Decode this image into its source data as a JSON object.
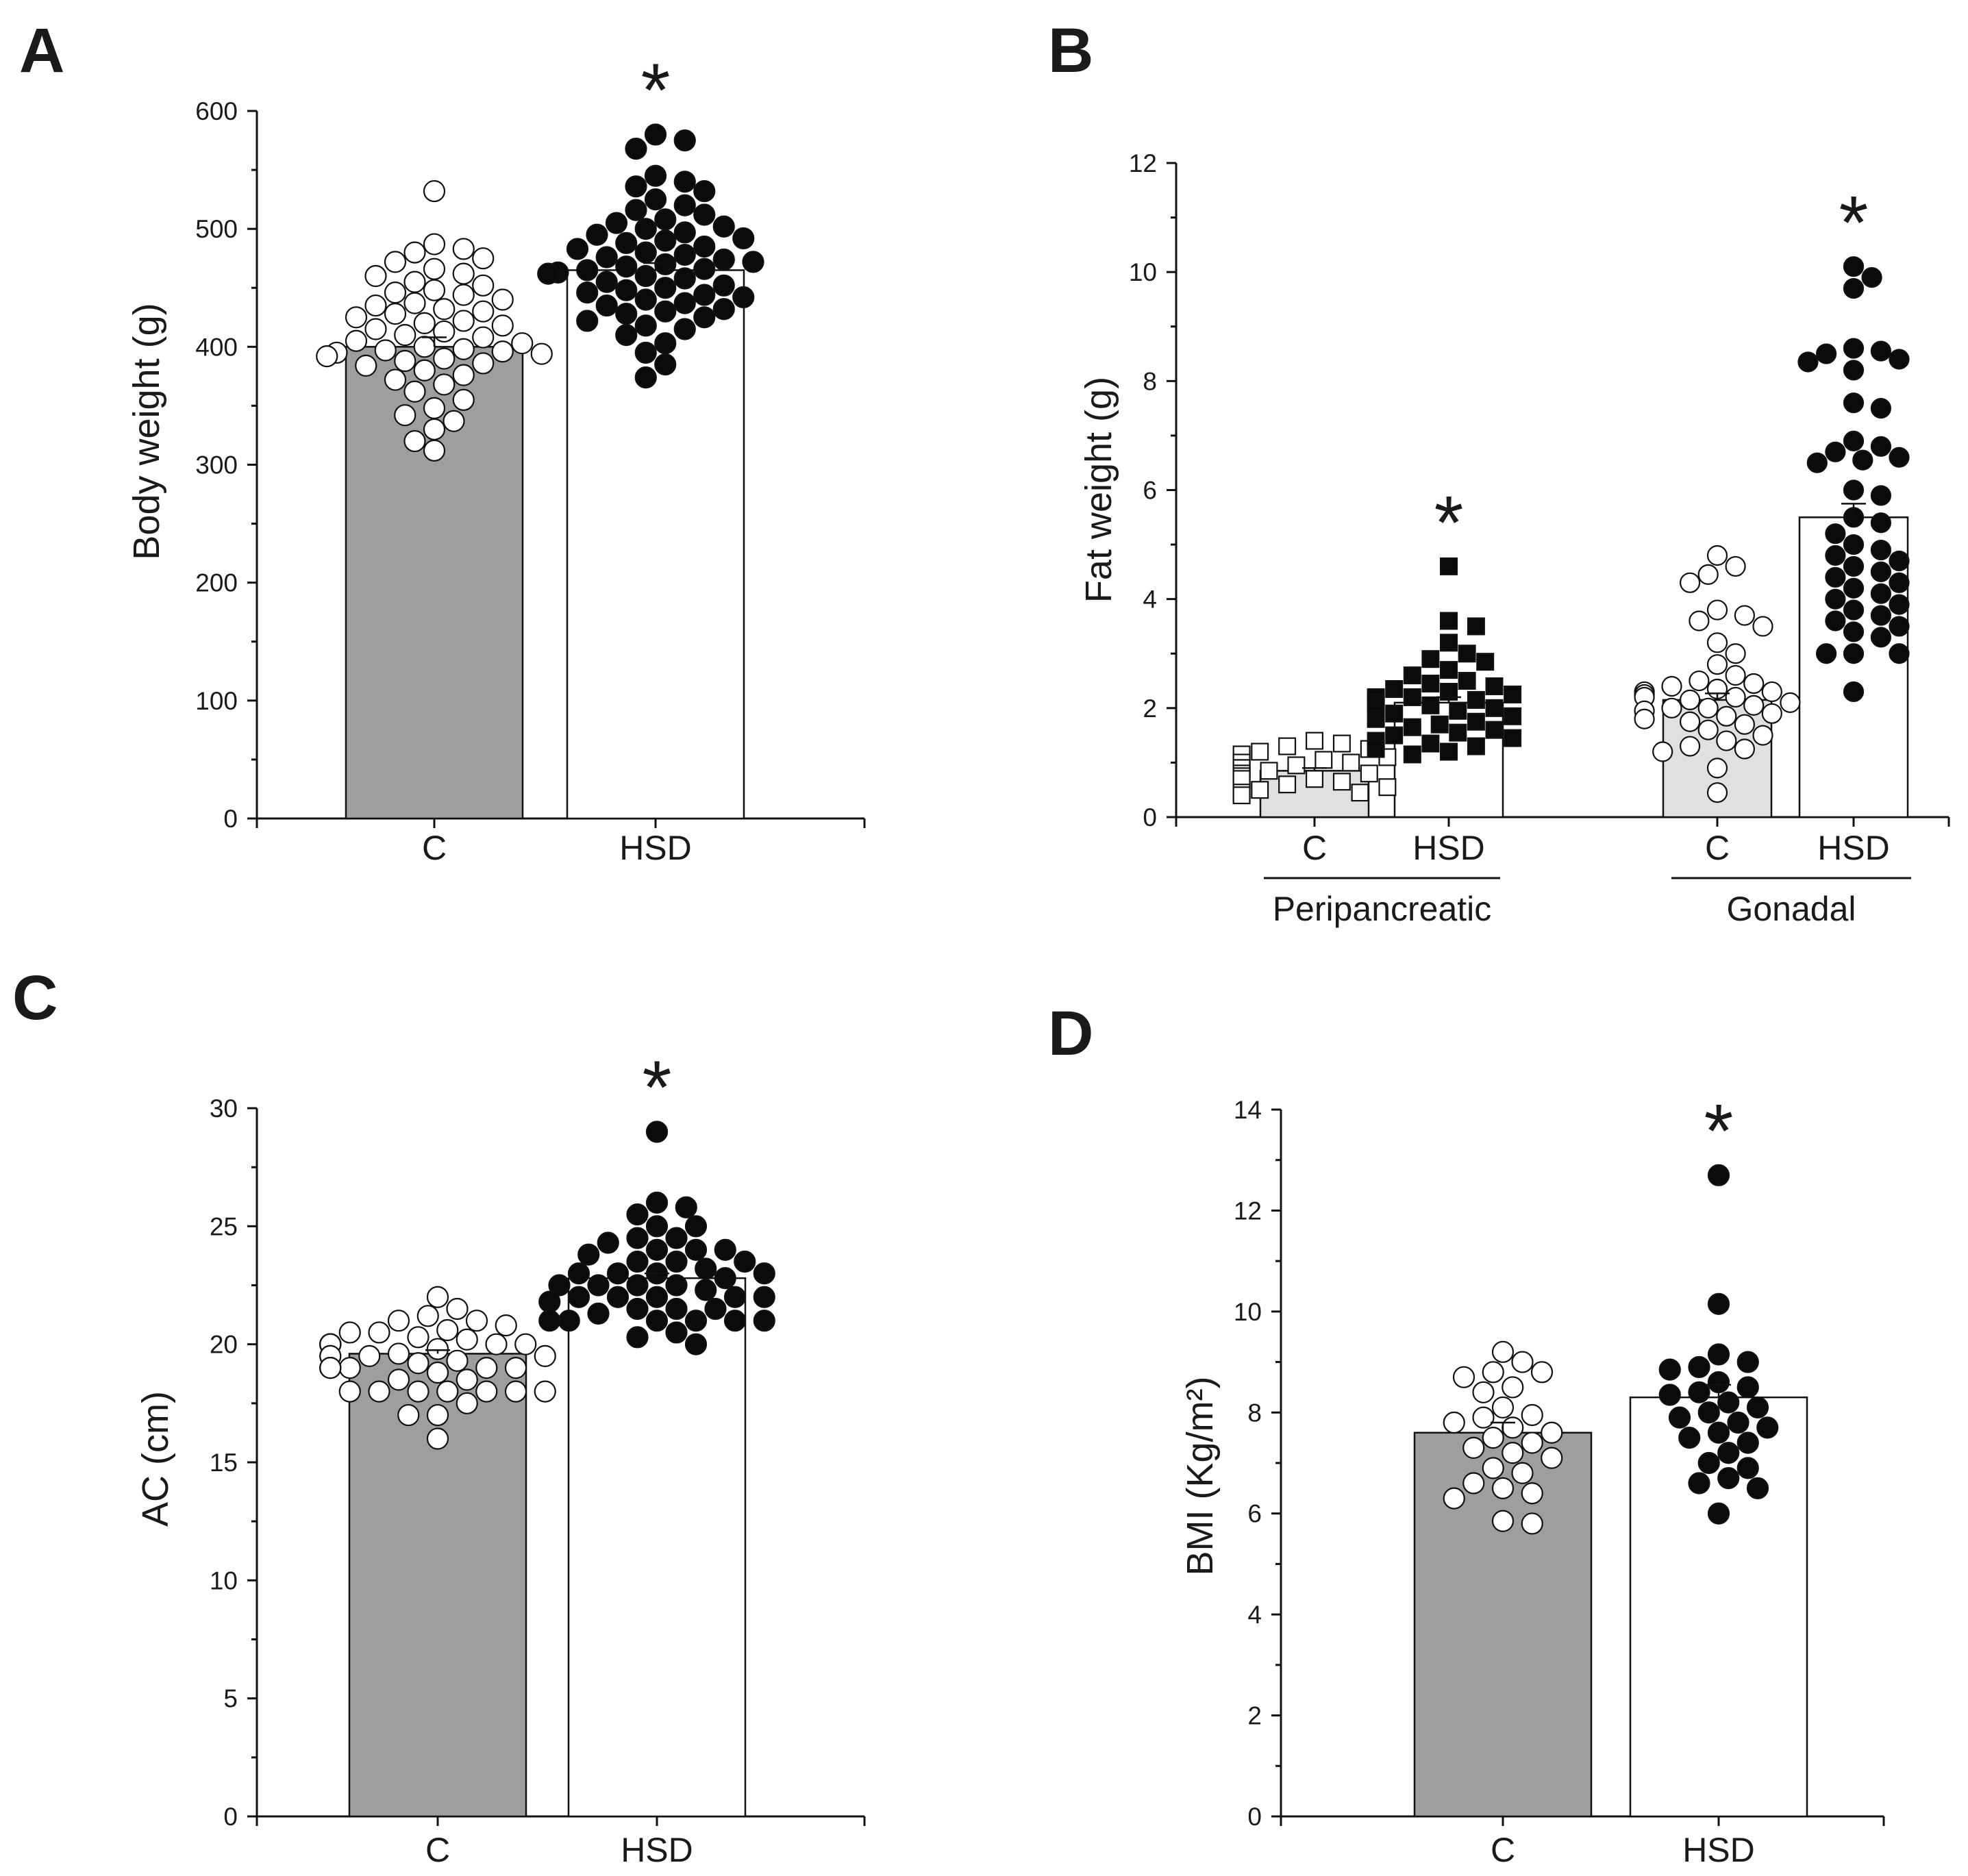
{
  "figure": {
    "panel_count": 4
  },
  "chart_data": [
    {
      "panel": "A",
      "type": "bar",
      "ylabel": "Body weight (g)",
      "ylim": [
        0,
        600
      ],
      "yticks": [
        "0",
        "100",
        "200",
        "300",
        "400",
        "500",
        "600"
      ],
      "categories": [
        "C",
        "HSD"
      ],
      "group_labels": [],
      "significance": [
        "",
        "*"
      ],
      "bars": [
        {
          "name": "C",
          "mean": 400,
          "sem": 8,
          "fill": "#9e9e9e",
          "marker": "circle-open",
          "points": [
            532,
            487,
            483,
            480,
            475,
            472,
            466,
            462,
            460,
            455,
            452,
            448,
            446,
            444,
            440,
            437,
            435,
            432,
            430,
            428,
            425,
            422,
            420,
            418,
            415,
            413,
            410,
            408,
            405,
            403,
            400,
            398,
            397,
            396,
            395,
            394,
            392,
            390,
            388,
            386,
            384,
            380,
            376,
            372,
            368,
            362,
            355,
            348,
            342,
            337,
            330,
            320,
            312
          ]
        },
        {
          "name": "HSD",
          "mean": 465,
          "sem": 6,
          "fill": "#ffffff",
          "marker": "circle-filled",
          "points": [
            580,
            575,
            568,
            545,
            540,
            536,
            532,
            525,
            520,
            516,
            512,
            508,
            505,
            502,
            500,
            497,
            495,
            492,
            490,
            488,
            485,
            483,
            480,
            478,
            476,
            474,
            472,
            470,
            468,
            466,
            465,
            463,
            462,
            460,
            458,
            455,
            452,
            450,
            448,
            446,
            444,
            442,
            440,
            437,
            435,
            432,
            430,
            428,
            425,
            422,
            418,
            415,
            410,
            403,
            395,
            385,
            374
          ]
        }
      ]
    },
    {
      "panel": "B",
      "type": "bar",
      "ylabel": "Fat weight (g)",
      "ylim": [
        0,
        12
      ],
      "yticks": [
        "0",
        "2",
        "4",
        "6",
        "8",
        "10",
        "12"
      ],
      "categories": [
        "C",
        "HSD",
        "C",
        "HSD"
      ],
      "group_labels": [
        "Peripancreatic",
        "Gonadal"
      ],
      "significance": [
        "",
        "*",
        "",
        "*"
      ],
      "bars": [
        {
          "name": "C",
          "group": "Peripancreatic",
          "mean": 0.85,
          "sem": 0.05,
          "fill": "#e0e0e0",
          "marker": "square-open",
          "points": [
            1.4,
            1.35,
            1.3,
            1.25,
            1.2,
            1.15,
            1.1,
            1.05,
            1.0,
            1.0,
            0.95,
            0.9,
            0.9,
            0.85,
            0.8,
            0.8,
            0.75,
            0.7,
            0.7,
            0.65,
            0.6,
            0.55,
            0.5,
            0.45,
            0.45,
            0.4
          ]
        },
        {
          "name": "HSD",
          "group": "Peripancreatic",
          "mean": 2.1,
          "sem": 0.1,
          "fill": "#ffffff",
          "marker": "square-filled",
          "points": [
            4.6,
            3.6,
            3.5,
            3.2,
            3.0,
            2.9,
            2.85,
            2.7,
            2.6,
            2.5,
            2.45,
            2.4,
            2.35,
            2.3,
            2.25,
            2.2,
            2.2,
            2.15,
            2.1,
            2.05,
            2.0,
            1.95,
            1.9,
            1.85,
            1.8,
            1.75,
            1.7,
            1.65,
            1.6,
            1.55,
            1.5,
            1.45,
            1.4,
            1.35,
            1.3,
            1.25,
            1.2,
            1.15
          ]
        },
        {
          "name": "C",
          "group": "Gonadal",
          "mean": 2.15,
          "sem": 0.12,
          "fill": "#e0e0e0",
          "marker": "circle-open",
          "points": [
            4.8,
            4.6,
            4.45,
            4.3,
            3.8,
            3.7,
            3.6,
            3.5,
            3.2,
            3.0,
            2.8,
            2.6,
            2.5,
            2.45,
            2.4,
            2.35,
            2.3,
            2.3,
            2.25,
            2.2,
            2.2,
            2.15,
            2.1,
            2.05,
            2.0,
            2.0,
            1.95,
            1.9,
            1.85,
            1.8,
            1.75,
            1.7,
            1.6,
            1.5,
            1.4,
            1.3,
            1.25,
            1.2,
            0.9,
            0.45
          ]
        },
        {
          "name": "HSD",
          "group": "Gonadal",
          "mean": 5.5,
          "sem": 0.25,
          "fill": "#ffffff",
          "marker": "circle-filled",
          "points": [
            10.1,
            9.9,
            9.7,
            8.6,
            8.55,
            8.5,
            8.4,
            8.35,
            8.2,
            7.6,
            7.5,
            6.9,
            6.8,
            6.7,
            6.6,
            6.55,
            6.5,
            6.0,
            5.9,
            5.5,
            5.4,
            5.2,
            5.0,
            4.9,
            4.8,
            4.7,
            4.6,
            4.5,
            4.4,
            4.3,
            4.2,
            4.1,
            4.0,
            3.9,
            3.8,
            3.7,
            3.6,
            3.5,
            3.4,
            3.3,
            3.0,
            3.0,
            3.0,
            2.3
          ]
        }
      ]
    },
    {
      "panel": "C",
      "type": "bar",
      "ylabel": "AC (cm)",
      "ylim": [
        0,
        30
      ],
      "yticks": [
        "0",
        "5",
        "10",
        "15",
        "20",
        "25",
        "30"
      ],
      "categories": [
        "C",
        "HSD"
      ],
      "group_labels": [],
      "significance": [
        "",
        "*"
      ],
      "bars": [
        {
          "name": "C",
          "mean": 19.6,
          "sem": 0.15,
          "fill": "#9e9e9e",
          "marker": "circle-open",
          "points": [
            22,
            21.5,
            21.2,
            21,
            21,
            20.8,
            20.6,
            20.5,
            20.5,
            20.3,
            20.2,
            20,
            20,
            20,
            20,
            20,
            20,
            20,
            20,
            20,
            20,
            19.8,
            19.6,
            19.5,
            19.5,
            19.5,
            19.5,
            19.3,
            19.2,
            19,
            19,
            19,
            19,
            19,
            19,
            18.8,
            18.5,
            18.5,
            18,
            18,
            18,
            18,
            18,
            18,
            18,
            17.5,
            17,
            17,
            16
          ]
        },
        {
          "name": "HSD",
          "mean": 22.8,
          "sem": 0.2,
          "fill": "#ffffff",
          "marker": "circle-filled",
          "points": [
            29,
            26,
            25.8,
            25.5,
            25,
            25,
            24.5,
            24.5,
            24.3,
            24,
            24,
            24,
            23.8,
            23.5,
            23.5,
            23.5,
            23.2,
            23,
            23,
            23,
            23,
            22.8,
            22.5,
            22.5,
            22.5,
            22.5,
            22.3,
            22,
            22,
            22,
            22,
            22,
            21.8,
            21.5,
            21.5,
            21.5,
            21.3,
            21,
            21,
            21,
            21,
            21,
            21,
            20.5,
            20.3,
            20
          ]
        }
      ]
    },
    {
      "panel": "D",
      "type": "bar",
      "ylabel": "BMI (Kg/m²)",
      "ylim": [
        0,
        14
      ],
      "yticks": [
        "0",
        "2",
        "4",
        "6",
        "8",
        "10",
        "12",
        "14"
      ],
      "categories": [
        "C",
        "HSD"
      ],
      "group_labels": [],
      "significance": [
        "",
        "*"
      ],
      "bars": [
        {
          "name": "C",
          "mean": 7.6,
          "sem": 0.2,
          "fill": "#9e9e9e",
          "marker": "circle-open",
          "points": [
            9.2,
            9.0,
            8.8,
            8.8,
            8.7,
            8.5,
            8.4,
            8.1,
            7.95,
            7.9,
            7.8,
            7.7,
            7.6,
            7.5,
            7.4,
            7.3,
            7.2,
            7.1,
            6.9,
            6.8,
            6.6,
            6.5,
            6.4,
            6.3,
            5.85,
            5.8
          ]
        },
        {
          "name": "HSD",
          "mean": 8.3,
          "sem": 0.25,
          "fill": "#ffffff",
          "marker": "circle-filled",
          "points": [
            12.7,
            10.15,
            9.15,
            9.0,
            8.9,
            8.85,
            8.6,
            8.5,
            8.4,
            8.35,
            8.2,
            8.1,
            8.0,
            7.9,
            7.8,
            7.7,
            7.6,
            7.5,
            7.4,
            7.2,
            7.0,
            6.9,
            6.7,
            6.6,
            6.5,
            6.0
          ]
        }
      ]
    }
  ]
}
